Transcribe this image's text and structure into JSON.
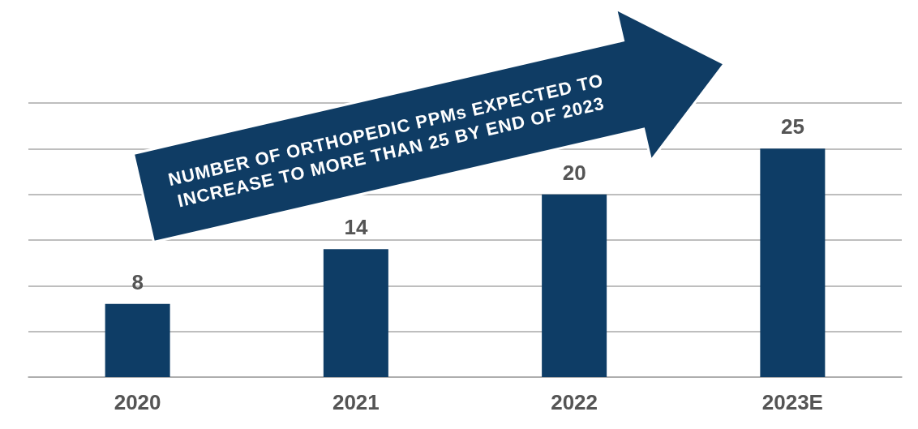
{
  "chart_data": {
    "type": "bar",
    "categories": [
      "2020",
      "2021",
      "2022",
      "2023E"
    ],
    "values": [
      8,
      14,
      20,
      25
    ],
    "color": "#0e3d66",
    "ylim": [
      0,
      30
    ],
    "yticks": [
      {
        "value": 0,
        "label": null
      },
      {
        "value": 5,
        "label": null
      },
      {
        "value": 10,
        "label": null
      },
      {
        "value": 15,
        "label": null
      },
      {
        "value": 20,
        "label": null
      },
      {
        "value": 25,
        "label": null
      },
      {
        "value": 30,
        "label": null
      }
    ],
    "tick_labels": "x",
    "grid": "y",
    "data_labels": true,
    "annotations": [
      "NUMBER OF ORTHOPEDIC PPMs EXPECTED TO INCREASE TO MORE THAN 25 BY END OF 2023"
    ]
  }
}
